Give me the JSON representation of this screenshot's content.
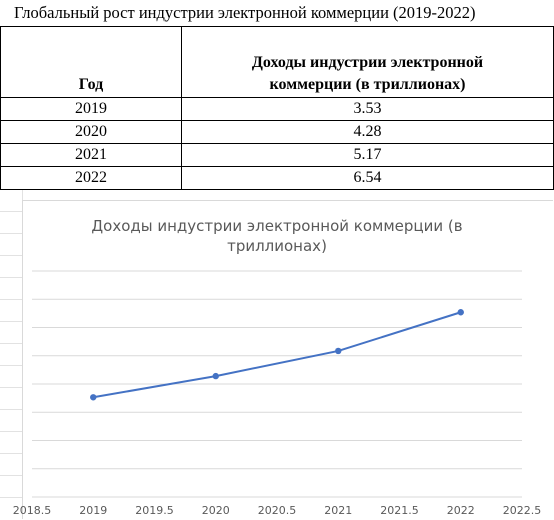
{
  "table": {
    "title": "Глобальный рост индустрии электронной коммерции (2019-2022)",
    "headers": {
      "year": "Год",
      "revenue_line1": "Доходы индустрии электронной",
      "revenue_line2": "коммерции (в триллионах)"
    },
    "rows": [
      {
        "year": "2019",
        "value": "3.53"
      },
      {
        "year": "2020",
        "value": "4.28"
      },
      {
        "year": "2021",
        "value": "5.17"
      },
      {
        "year": "2022",
        "value": "6.54"
      }
    ]
  },
  "chart_data": {
    "type": "scatter",
    "title_line1": "Доходы индустрии электронной коммерции (в",
    "title_line2": "триллионах)",
    "x": [
      2019,
      2020,
      2021,
      2022
    ],
    "y": [
      3.53,
      4.28,
      5.17,
      6.54
    ],
    "xlim": [
      2018.5,
      2022.5
    ],
    "ylim": [
      0,
      8
    ],
    "x_ticks": [
      "2018.5",
      "2019",
      "2019.5",
      "2020",
      "2020.5",
      "2021",
      "2021.5",
      "2022",
      "2022.5"
    ],
    "y_tick_labels_visible": false,
    "grid": "horizontal",
    "line": "straight lines with markers",
    "colors": {
      "series": "#4472c4",
      "grid": "#d9d9d9",
      "text": "#595959"
    }
  }
}
